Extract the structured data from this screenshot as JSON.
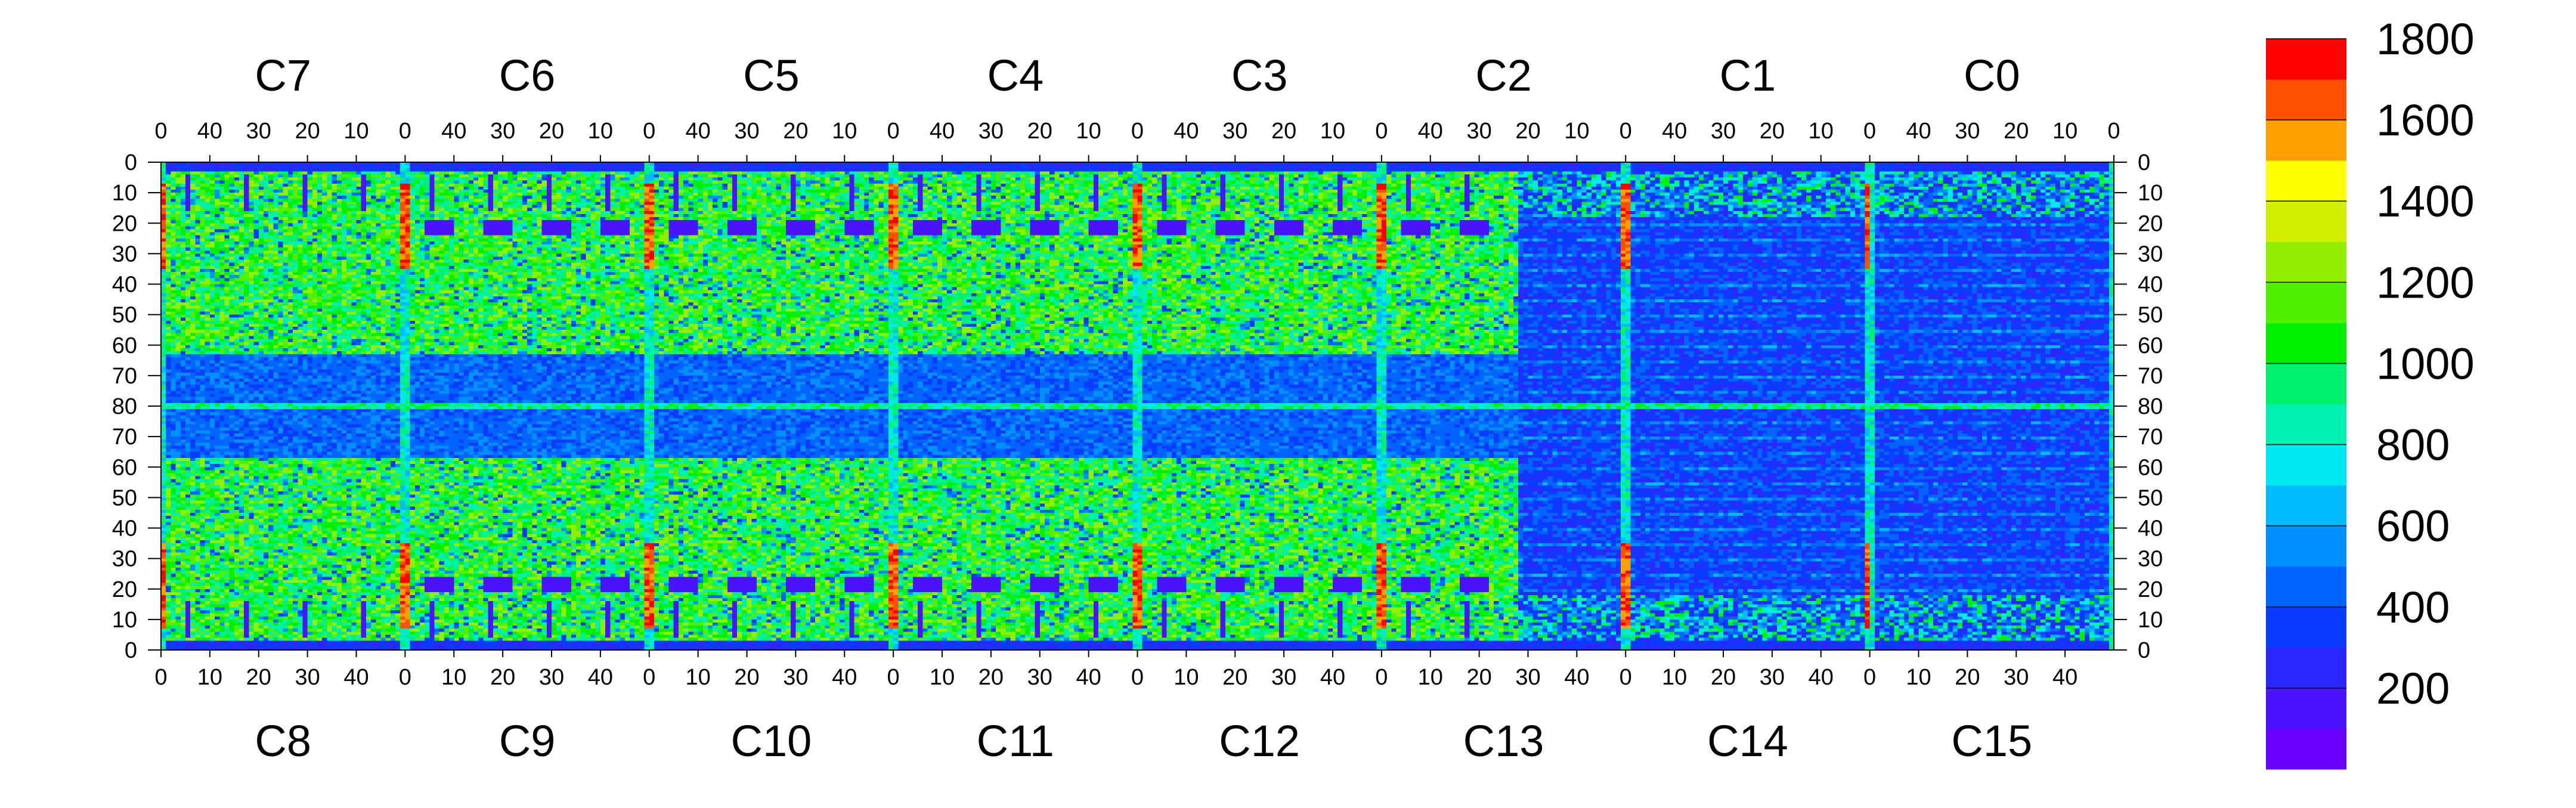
{
  "chart_data": {
    "type": "heatmap",
    "title": "",
    "xlabel": "",
    "ylabel": "",
    "top_chips": [
      "C7",
      "C6",
      "C5",
      "C4",
      "C3",
      "C2",
      "C1",
      "C0"
    ],
    "bottom_chips": [
      "C8",
      "C9",
      "C10",
      "C11",
      "C12",
      "C13",
      "C14",
      "C15"
    ],
    "top_x_ticks": [
      "40",
      "30",
      "20",
      "10",
      "0"
    ],
    "top_x_first_tick": "0",
    "bottom_x_ticks": [
      "0",
      "10",
      "20",
      "30",
      "40"
    ],
    "y_ticks": [
      "0",
      "10",
      "20",
      "30",
      "40",
      "50",
      "60",
      "70",
      "80",
      "70",
      "60",
      "50",
      "40",
      "30",
      "20",
      "10",
      "0"
    ],
    "colorbar": {
      "labels": [
        "1800",
        "1600",
        "1400",
        "1200",
        "1000",
        "800",
        "600",
        "400",
        "200"
      ],
      "label_values": [
        1800,
        1600,
        1400,
        1200,
        1000,
        800,
        600,
        400,
        200
      ],
      "range": [
        0,
        1800
      ],
      "levels": 18,
      "colors": [
        "#6a00ff",
        "#4a14ff",
        "#2a28ff",
        "#0a3cff",
        "#0064ff",
        "#0090ff",
        "#00bcff",
        "#00e8f0",
        "#00f0b0",
        "#00f070",
        "#00f000",
        "#50f000",
        "#90f000",
        "#d0f000",
        "#ffff00",
        "#ffa000",
        "#ff5000",
        "#ff0000"
      ]
    },
    "description_values": {
      "typical_hit_counts_dense_regions": 1100,
      "typical_hit_counts_low_regions": 250,
      "peak_columns": 1800
    }
  }
}
